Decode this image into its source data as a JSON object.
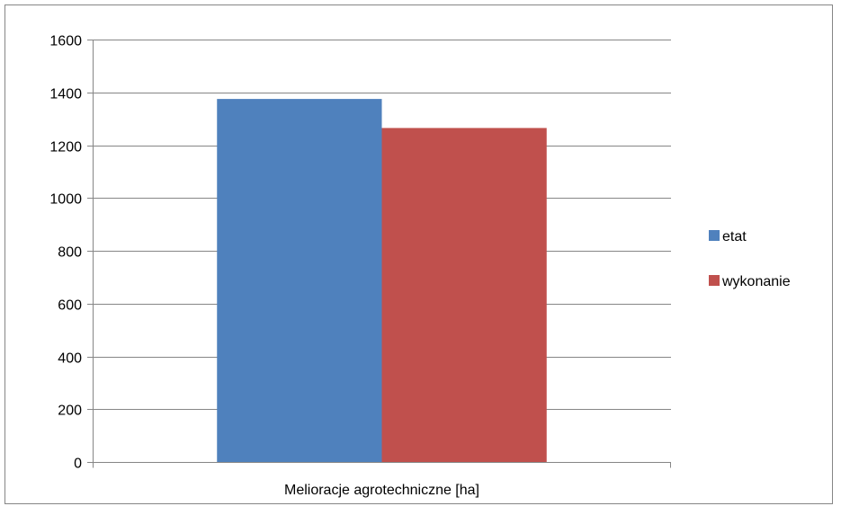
{
  "chart_data": {
    "type": "bar",
    "categories": [
      "Melioracje agrotechniczne  [ha]"
    ],
    "series": [
      {
        "name": "etat",
        "values": [
          1375
        ],
        "color": "#4F81BD"
      },
      {
        "name": "wykonanie",
        "values": [
          1265
        ],
        "color": "#C0504D"
      }
    ],
    "ylim": [
      0,
      1600
    ],
    "yticks": [
      0,
      200,
      400,
      600,
      800,
      1000,
      1200,
      1400,
      1600
    ],
    "grid": true,
    "legend_position": "right",
    "gridline_color": "#868686",
    "axis_color": "#868686"
  }
}
